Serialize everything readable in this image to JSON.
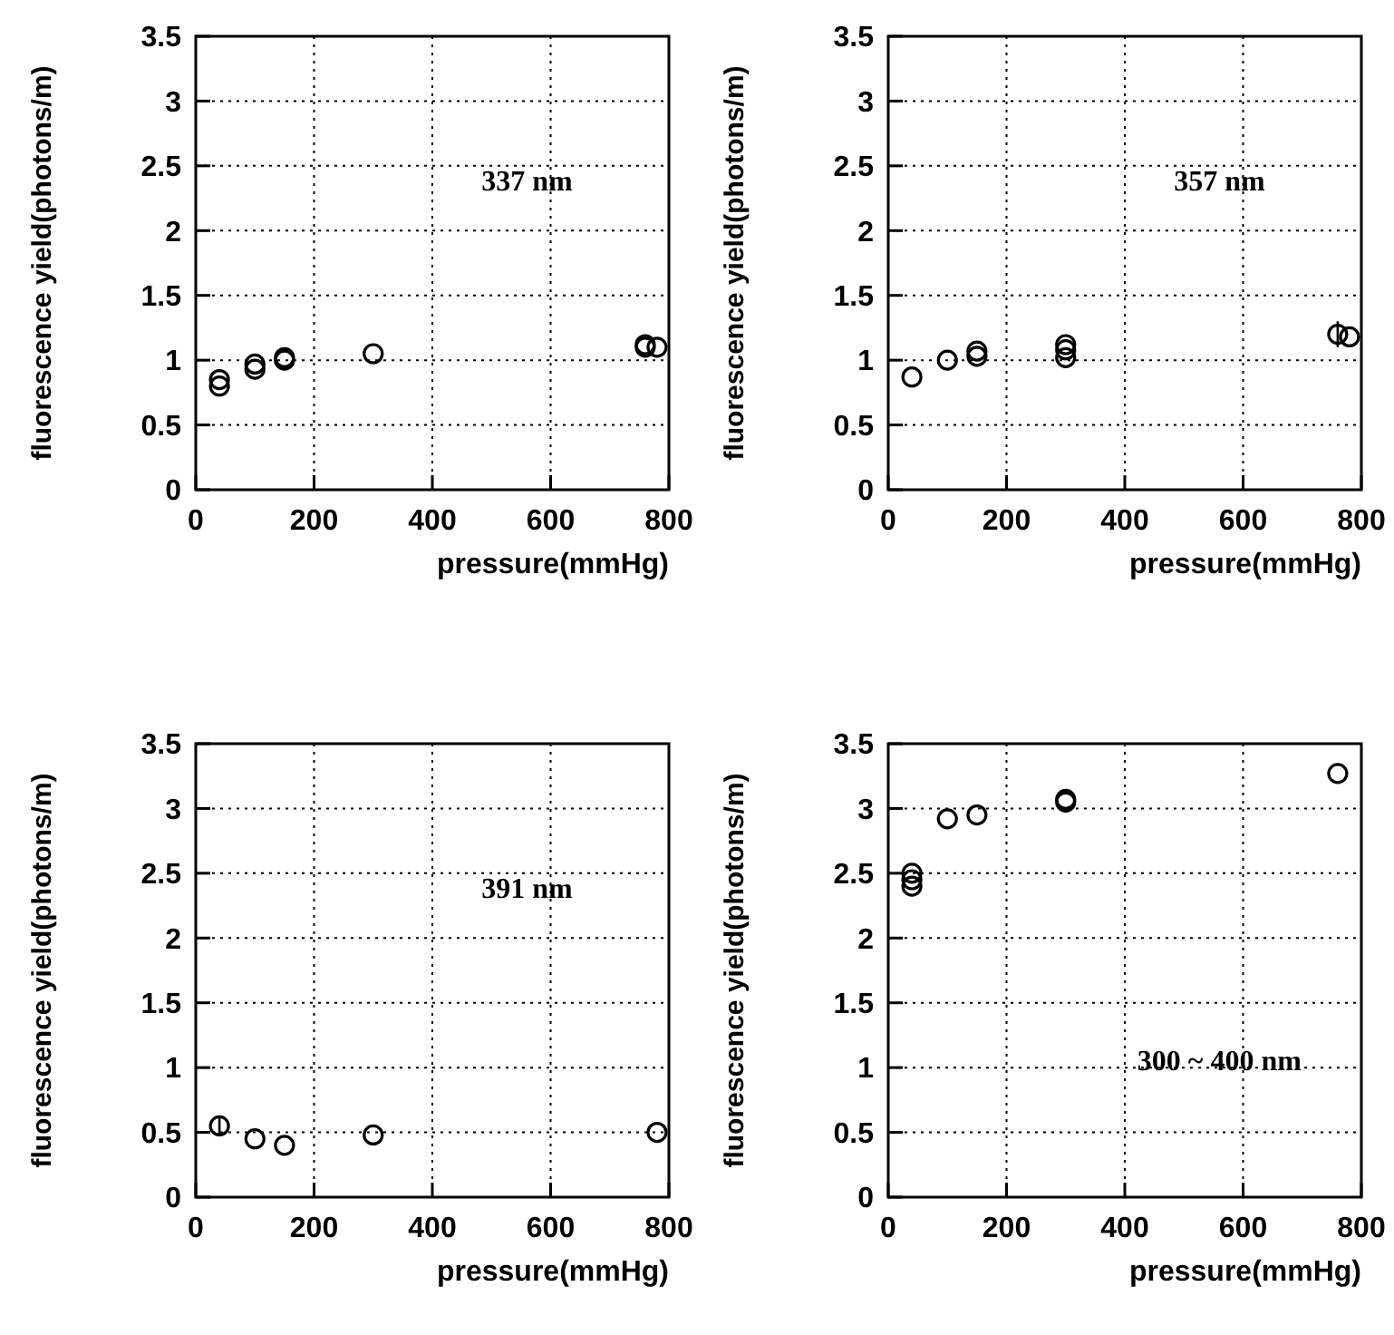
{
  "chart_data": [
    {
      "type": "scatter",
      "xlabel": "pressure(mmHg)",
      "ylabel": "fluorescence yield(photons/m)",
      "annotations": [
        "337 nm"
      ],
      "marker": "circle",
      "grid": true,
      "xlim": [
        0,
        800
      ],
      "ylim": [
        0,
        3.5
      ],
      "xticks": [
        0,
        200,
        400,
        600,
        800
      ],
      "yticks": [
        0,
        {
          "value": 0.5,
          "label": "0.5"
        },
        1,
        {
          "value": 1.5,
          "label": "1.5"
        },
        2,
        {
          "value": 2.5,
          "label": "2.5"
        },
        3,
        {
          "value": 3.5,
          "label": "3.5"
        }
      ],
      "series": [
        {
          "color": "#000000",
          "x": [
            40,
            40,
            100,
            100,
            150,
            150,
            300,
            760,
            760,
            780
          ],
          "values": [
            0.8,
            0.85,
            0.93,
            0.97,
            1.0,
            1.02,
            1.05,
            1.1,
            1.12,
            1.1
          ]
        }
      ]
    },
    {
      "type": "scatter",
      "xlabel": "pressure(mmHg)",
      "ylabel": "fluorescence yield(photons/m)",
      "annotations": [
        "357 nm"
      ],
      "marker": "circle",
      "grid": true,
      "xlim": [
        0,
        800
      ],
      "ylim": [
        0,
        3.5
      ],
      "xticks": [
        0,
        200,
        400,
        600,
        800
      ],
      "yticks": [
        0,
        {
          "value": 0.5,
          "label": "0.5"
        },
        1,
        {
          "value": 1.5,
          "label": "1.5"
        },
        2,
        {
          "value": 2.5,
          "label": "2.5"
        },
        3,
        {
          "value": 3.5,
          "label": "3.5"
        }
      ],
      "series": [
        {
          "color": "#000000",
          "x": [
            40,
            100,
            150,
            150,
            300,
            300,
            300,
            760,
            780
          ],
          "values": [
            0.87,
            1.0,
            1.03,
            1.07,
            1.02,
            1.08,
            1.12,
            1.2,
            1.18
          ],
          "errors": [
            null,
            null,
            null,
            null,
            null,
            null,
            null,
            0.1,
            null
          ]
        }
      ]
    },
    {
      "type": "scatter",
      "xlabel": "pressure(mmHg)",
      "ylabel": "fluorescence yield(photons/m)",
      "annotations": [
        "391 nm"
      ],
      "marker": "circle",
      "grid": true,
      "xlim": [
        0,
        800
      ],
      "ylim": [
        0,
        3.5
      ],
      "xticks": [
        0,
        200,
        400,
        600,
        800
      ],
      "yticks": [
        0,
        {
          "value": 0.5,
          "label": "0.5"
        },
        1,
        {
          "value": 1.5,
          "label": "1.5"
        },
        2,
        {
          "value": 2.5,
          "label": "2.5"
        },
        3,
        {
          "value": 3.5,
          "label": "3.5"
        }
      ],
      "series": [
        {
          "color": "#000000",
          "x": [
            40,
            100,
            150,
            300,
            780
          ],
          "values": [
            0.55,
            0.45,
            0.4,
            0.48,
            0.5
          ],
          "errors": [
            0.07,
            null,
            null,
            null,
            null
          ]
        }
      ]
    },
    {
      "type": "scatter",
      "xlabel": "pressure(mmHg)",
      "ylabel": "fluorescence yield(photons/m)",
      "annotations": [
        "300 ~ 400 nm"
      ],
      "marker": "circle",
      "grid": true,
      "xlim": [
        0,
        800
      ],
      "ylim": [
        0,
        3.5
      ],
      "xticks": [
        0,
        200,
        400,
        600,
        800
      ],
      "yticks": [
        0,
        {
          "value": 0.5,
          "label": "0.5"
        },
        1,
        {
          "value": 1.5,
          "label": "1.5"
        },
        2,
        {
          "value": 2.5,
          "label": "2.5"
        },
        3,
        {
          "value": 3.5,
          "label": "3.5"
        }
      ],
      "series": [
        {
          "color": "#000000",
          "x": [
            40,
            40,
            40,
            100,
            150,
            300,
            300,
            760
          ],
          "values": [
            2.4,
            2.45,
            2.5,
            2.92,
            2.95,
            3.05,
            3.07,
            3.27
          ]
        }
      ]
    }
  ]
}
